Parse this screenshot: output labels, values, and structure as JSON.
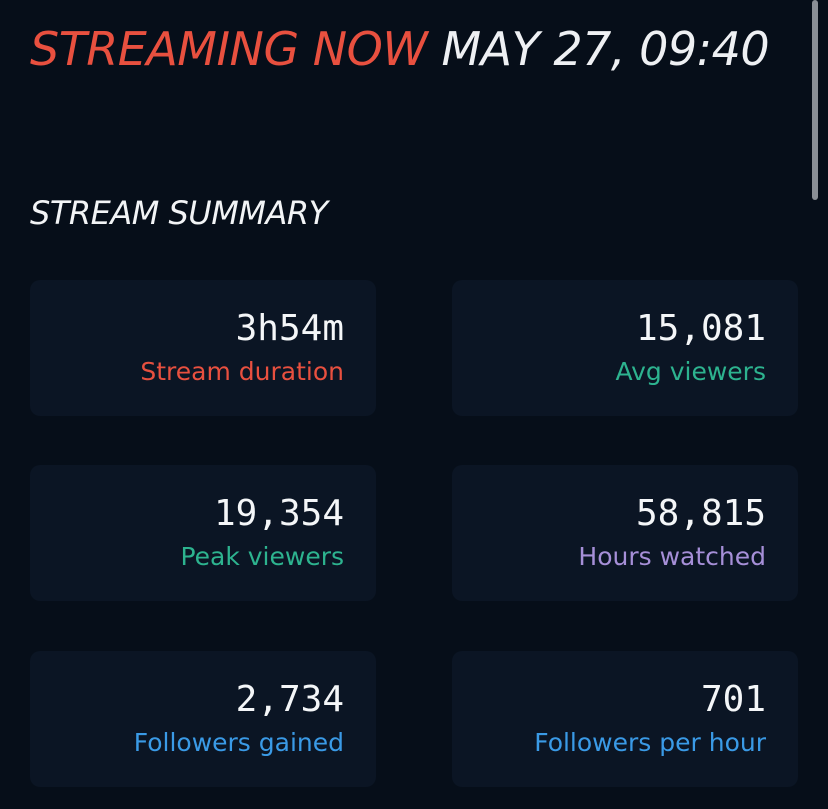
{
  "header": {
    "status": "STREAMING NOW",
    "datetime": "MAY 27, 09:40"
  },
  "section": {
    "title": "STREAM SUMMARY",
    "cards": [
      {
        "value": "3h54m",
        "label": "Stream duration"
      },
      {
        "value": "15,081",
        "label": "Avg viewers"
      },
      {
        "value": "19,354",
        "label": "Peak viewers"
      },
      {
        "value": "58,815",
        "label": "Hours watched"
      },
      {
        "value": "2,734",
        "label": "Followers gained"
      },
      {
        "value": "701",
        "label": "Followers per hour"
      }
    ]
  }
}
